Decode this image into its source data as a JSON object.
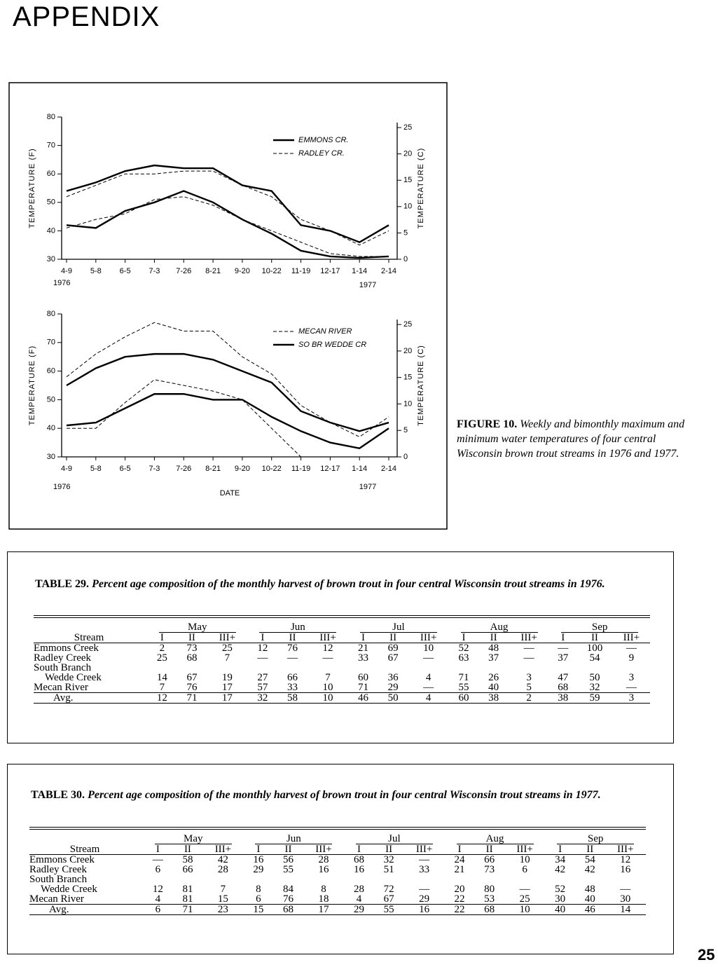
{
  "header": {
    "title": "APPENDIX"
  },
  "chart_data": [
    {
      "type": "line",
      "ylabel": "TEMPERATURE (F)",
      "y2label": "TEMPERATURE (C)",
      "categories": [
        "4-9",
        "5-8",
        "6-5",
        "7-3",
        "7-26",
        "8-21",
        "9-20",
        "10-22",
        "11-19",
        "12-17",
        "1-14",
        "2-14"
      ],
      "annotations": [
        "1976",
        "1977"
      ],
      "ylim": [
        30,
        80
      ],
      "yticks": [
        30,
        40,
        50,
        60,
        70,
        80
      ],
      "y2lim": [
        0,
        27
      ],
      "y2ticks": [
        0,
        5,
        10,
        15,
        20,
        25
      ],
      "series": [
        {
          "name": "EMMONS CR.",
          "color": "#000000",
          "dashed": false,
          "max": [
            54,
            57,
            61,
            63,
            62,
            62,
            56,
            54,
            42,
            40,
            36,
            42
          ],
          "min": [
            42,
            41,
            47,
            50,
            54,
            50,
            44,
            39,
            33,
            31,
            30.5,
            31
          ]
        },
        {
          "name": "RADLEY CR.",
          "color": "#000000",
          "dashed": true,
          "max": [
            52,
            56,
            60,
            60,
            61,
            61,
            56,
            52,
            44,
            40,
            35,
            40
          ],
          "min": [
            41,
            44,
            46,
            51,
            52,
            49,
            44,
            40,
            36,
            32,
            31,
            31
          ]
        }
      ]
    },
    {
      "type": "line",
      "ylabel": "TEMPERATURE (F)",
      "y2label": "TEMPERATURE (C)",
      "xlabel": "DATE",
      "categories": [
        "4-9",
        "5-8",
        "6-5",
        "7-3",
        "7-26",
        "8-21",
        "9-20",
        "10-22",
        "11-19",
        "12-17",
        "1-14",
        "2-14"
      ],
      "annotations": [
        "1976",
        "1977"
      ],
      "ylim": [
        30,
        80
      ],
      "yticks": [
        30,
        40,
        50,
        60,
        70,
        80
      ],
      "y2lim": [
        0,
        27
      ],
      "y2ticks": [
        0,
        5,
        10,
        15,
        20,
        25
      ],
      "series": [
        {
          "name": "MECAN RIVER",
          "color": "#000000",
          "dashed": true,
          "max": [
            58,
            66,
            72,
            77,
            74,
            74,
            65,
            59,
            48,
            42,
            37,
            44
          ],
          "min": [
            40,
            40,
            49,
            57,
            55,
            53,
            50,
            40,
            30,
            30,
            30,
            30
          ]
        },
        {
          "name": "SO BR WEDDE CR",
          "color": "#000000",
          "dashed": false,
          "max": [
            55,
            61,
            65,
            66,
            66,
            64,
            60,
            56,
            46,
            42,
            39,
            42
          ],
          "min": [
            41,
            42,
            47,
            52,
            52,
            50,
            50,
            44,
            39,
            35,
            33,
            40
          ]
        }
      ]
    }
  ],
  "figure": {
    "label": "FIGURE 10.",
    "caption": "Weekly and bimonthly maximum and minimum water temperatures of four central Wisconsin brown trout streams in 1976 and 1977."
  },
  "tables": [
    {
      "label": "TABLE 29.",
      "caption": "Percent age composition of the monthly harvest of brown trout in four central Wisconsin trout streams in 1976.",
      "stream_header": "Stream",
      "months": [
        "May",
        "Jun",
        "Jul",
        "Aug",
        "Sep"
      ],
      "subheaders": [
        "I",
        "II",
        "III+"
      ],
      "rows": [
        {
          "stream": [
            "Emmons Creek"
          ],
          "cells": [
            "2",
            "73",
            "25",
            "12",
            "76",
            "12",
            "21",
            "69",
            "10",
            "52",
            "48",
            "—",
            "—",
            "100",
            "—"
          ]
        },
        {
          "stream": [
            "Radley Creek"
          ],
          "cells": [
            "25",
            "68",
            "7",
            "—",
            "—",
            "—",
            "33",
            "67",
            "—",
            "63",
            "37",
            "—",
            "37",
            "54",
            "9"
          ]
        },
        {
          "stream": [
            "South Branch",
            "Wedde Creek"
          ],
          "cells": [
            "14",
            "67",
            "19",
            "27",
            "66",
            "7",
            "60",
            "36",
            "4",
            "71",
            "26",
            "3",
            "47",
            "50",
            "3"
          ]
        },
        {
          "stream": [
            "Mecan River"
          ],
          "cells": [
            "7",
            "76",
            "17",
            "57",
            "33",
            "10",
            "71",
            "29",
            "—",
            "55",
            "40",
            "5",
            "68",
            "32",
            "—"
          ]
        },
        {
          "stream": [
            "Avg."
          ],
          "cells": [
            "12",
            "71",
            "17",
            "32",
            "58",
            "10",
            "46",
            "50",
            "4",
            "60",
            "38",
            "2",
            "38",
            "59",
            "3"
          ]
        }
      ]
    },
    {
      "label": "TABLE 30.",
      "caption": "Percent age composition of the monthly harvest of brown trout in four central Wisconsin trout streams in 1977.",
      "stream_header": "Stream",
      "months": [
        "May",
        "Jun",
        "Jul",
        "Aug",
        "Sep"
      ],
      "subheaders": [
        "I",
        "II",
        "III+"
      ],
      "rows": [
        {
          "stream": [
            "Emmons Creek"
          ],
          "cells": [
            "—",
            "58",
            "42",
            "16",
            "56",
            "28",
            "68",
            "32",
            "—",
            "24",
            "66",
            "10",
            "34",
            "54",
            "12"
          ]
        },
        {
          "stream": [
            "Radley Creek"
          ],
          "cells": [
            "6",
            "66",
            "28",
            "29",
            "55",
            "16",
            "16",
            "51",
            "33",
            "21",
            "73",
            "6",
            "42",
            "42",
            "16"
          ]
        },
        {
          "stream": [
            "South Branch",
            "Wedde Creek"
          ],
          "cells": [
            "12",
            "81",
            "7",
            "8",
            "84",
            "8",
            "28",
            "72",
            "—",
            "20",
            "80",
            "—",
            "52",
            "48",
            "—"
          ]
        },
        {
          "stream": [
            "Mecan River"
          ],
          "cells": [
            "4",
            "81",
            "15",
            "6",
            "76",
            "18",
            "4",
            "67",
            "29",
            "22",
            "53",
            "25",
            "30",
            "40",
            "30"
          ]
        },
        {
          "stream": [
            "Avg."
          ],
          "cells": [
            "6",
            "71",
            "23",
            "15",
            "68",
            "17",
            "29",
            "55",
            "16",
            "22",
            "68",
            "10",
            "40",
            "46",
            "14"
          ]
        }
      ]
    }
  ],
  "page_number": "25"
}
